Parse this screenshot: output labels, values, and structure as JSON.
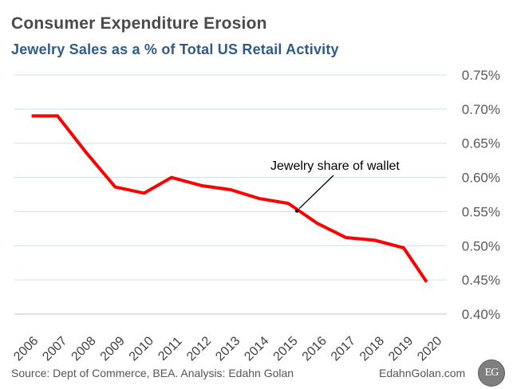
{
  "chart_data": {
    "type": "line",
    "title": "Consumer Expenditure Erosion",
    "subtitle": "Jewelry Sales as a % of Total US Retail Activity",
    "xlabel": "",
    "ylabel": "",
    "categories": [
      "2006",
      "2007",
      "2008",
      "2009",
      "2010",
      "2011",
      "2012",
      "2013",
      "2014",
      "2015",
      "2016",
      "2017",
      "2018",
      "2019",
      "2020"
    ],
    "series": [
      {
        "name": "Jewelry share of wallet",
        "x": [
          2006.1,
          2007.0,
          2008.0,
          2009.0,
          2010.0,
          2010.95,
          2012.0,
          2013.0,
          2014.0,
          2015.0,
          2016.0,
          2017.0,
          2018.0,
          2019.0,
          2019.8
        ],
        "values": [
          0.69,
          0.69,
          0.636,
          0.586,
          0.577,
          0.6,
          0.588,
          0.582,
          0.569,
          0.562,
          0.533,
          0.512,
          0.508,
          0.497,
          0.447
        ],
        "color": "#ff0000"
      }
    ],
    "ylim": [
      0.4,
      0.75
    ],
    "yticks": [
      0.4,
      0.45,
      0.5,
      0.55,
      0.6,
      0.65,
      0.7,
      0.75
    ],
    "ytick_labels": [
      "0.40%",
      "0.45%",
      "0.50%",
      "0.55%",
      "0.60%",
      "0.65%",
      "0.70%",
      "0.75%"
    ],
    "grid": true,
    "annotation": {
      "text": "Jewelry share of wallet",
      "target_x": 2015.3,
      "target_y": 0.551
    }
  },
  "footer": {
    "source": "Source: Dept of Commerce, BEA. Analysis: Edahn Golan",
    "site": "EdahnGolan.com",
    "logo": "EG"
  },
  "colors": {
    "line": "#ff0000",
    "grid": "#cfe0ea",
    "title": "#4a4a4a",
    "subtitle": "#2f5b86"
  }
}
